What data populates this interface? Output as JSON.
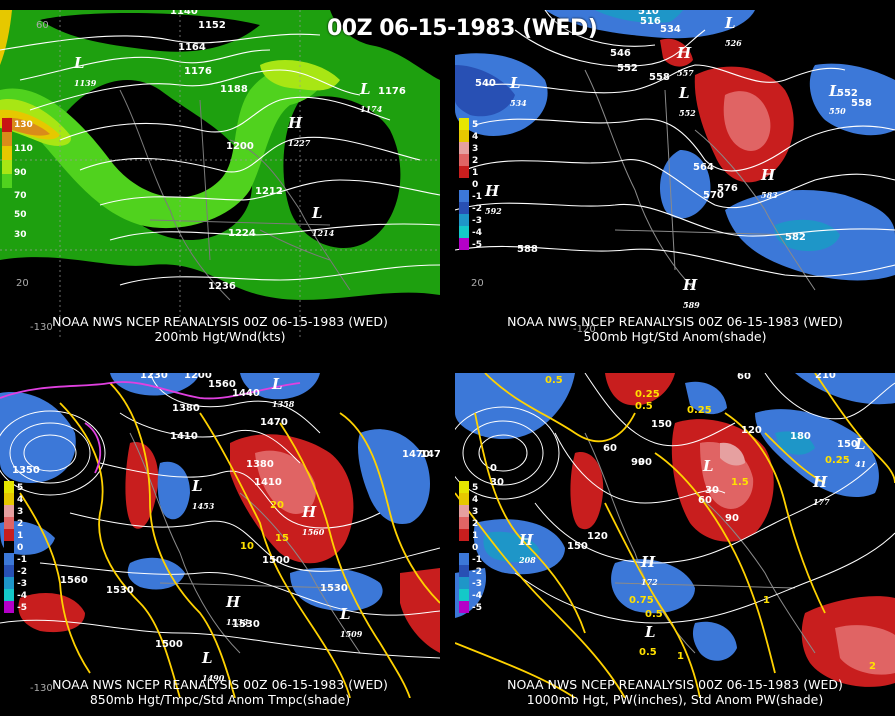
{
  "header": {
    "title": "00Z 06-15-1983 (WED)"
  },
  "panels": {
    "tl": {
      "caption1": "NOAA NWS NCEP REANALYSIS 00Z 06-15-1983 (WED)",
      "caption2": "200mb Hgt/Wnd(kts)",
      "legend": [
        "130",
        "110",
        "90",
        "70",
        "50",
        "30"
      ],
      "legend_colors": [
        "#c81414",
        "#d98c1a",
        "#e6c800",
        "#a8e614",
        "#50d21e",
        "#1ea00f"
      ],
      "contours": [
        "1140",
        "1152",
        "1164",
        "1176",
        "1188",
        "1200",
        "1212",
        "1224",
        "1236",
        "1176"
      ],
      "centers": [
        {
          "type": "L",
          "value": "1139"
        },
        {
          "type": "L",
          "value": "1174"
        },
        {
          "type": "H",
          "value": "1227"
        },
        {
          "type": "L",
          "value": "1214"
        }
      ],
      "lon_labels": [
        "-130",
        "60",
        "20"
      ]
    },
    "tr": {
      "caption1": "NOAA NWS NCEP REANALYSIS 00Z 06-15-1983 (WED)",
      "caption2": "500mb Hgt/Std Anom(shade)",
      "legend": [
        "5",
        "4",
        "3",
        "2",
        "1",
        "0",
        "-1",
        "-2",
        "-3",
        "-4",
        "-5"
      ],
      "legend_colors": [
        "#e6e600",
        "#e6c800",
        "#e6a0a0",
        "#e06464",
        "#c81e1e",
        "#000000",
        "#3c78d8",
        "#2850b4",
        "#1e96c8",
        "#14c8c8",
        "#b400c8"
      ],
      "contours": [
        "510",
        "516",
        "534",
        "546",
        "552",
        "558",
        "540",
        "564",
        "570",
        "576",
        "582",
        "588",
        "552",
        "558"
      ],
      "centers": [
        {
          "type": "L",
          "value": "534"
        },
        {
          "type": "H",
          "value": "557"
        },
        {
          "type": "L",
          "value": "552"
        },
        {
          "type": "L",
          "value": "526"
        },
        {
          "type": "L",
          "value": "550"
        },
        {
          "type": "H",
          "value": "583"
        },
        {
          "type": "H",
          "value": "592"
        },
        {
          "type": "H",
          "value": "589"
        }
      ],
      "lon_labels": [
        "-120",
        "20"
      ]
    },
    "bl": {
      "caption1": "NOAA NWS NCEP REANALYSIS 00Z 06-15-1983 (WED)",
      "caption2": "850mb Hgt/Tmpc/Std Anom Tmpc(shade)",
      "legend": [
        "5",
        "4",
        "3",
        "2",
        "1",
        "0",
        "-1",
        "-2",
        "-3",
        "-4",
        "-5"
      ],
      "contours": [
        "1230",
        "1200",
        "1380",
        "1410",
        "1440",
        "1470",
        "1350",
        "1380",
        "1410",
        "1470",
        "1500",
        "1530",
        "1560",
        "1530",
        "1500",
        "1530",
        "1560",
        "1470"
      ],
      "temps": [
        "10",
        "20",
        "15"
      ],
      "centers": [
        {
          "type": "L",
          "value": "1358"
        },
        {
          "type": "H",
          "value": "1560"
        },
        {
          "type": "H",
          "value": "1533"
        },
        {
          "type": "L",
          "value": "1490"
        },
        {
          "type": "L",
          "value": "1509"
        },
        {
          "type": "L",
          "value": "1453"
        }
      ],
      "lon_labels": [
        "-130"
      ]
    },
    "br": {
      "caption1": "NOAA NWS NCEP REANALYSIS 00Z 06-15-1983 (WED)",
      "caption2": "1000mb Hgt, PW(inches), Std Anom PW(shade)",
      "legend": [
        "5",
        "4",
        "3",
        "2",
        "1",
        "0",
        "-1",
        "-2",
        "-3",
        "-4",
        "-5"
      ],
      "contours": [
        "0",
        "30",
        "60",
        "90",
        "120",
        "150",
        "210",
        "180",
        "150",
        "60",
        "90",
        "120",
        "150",
        "60",
        "30",
        "90"
      ],
      "pw": [
        "0.5",
        "0.25",
        "0.5",
        "0.25",
        "1.5",
        "1",
        "0.75",
        "0.5",
        "0.25",
        "0.5",
        "1",
        "2"
      ],
      "centers": [
        {
          "type": "L",
          "value": ""
        },
        {
          "type": "H",
          "value": "208"
        },
        {
          "type": "H",
          "value": "177"
        },
        {
          "type": "H",
          "value": "172"
        },
        {
          "type": "L",
          "value": "41"
        },
        {
          "type": "L",
          "value": ""
        }
      ]
    }
  },
  "colors": {
    "contour": "#ffffff",
    "temp_contour": "#ffd200",
    "magenta": "#e040e0",
    "pos_anom": "#c81e1e",
    "neg_anom": "#3c78d8",
    "map_lines": "#8a8a8a"
  }
}
